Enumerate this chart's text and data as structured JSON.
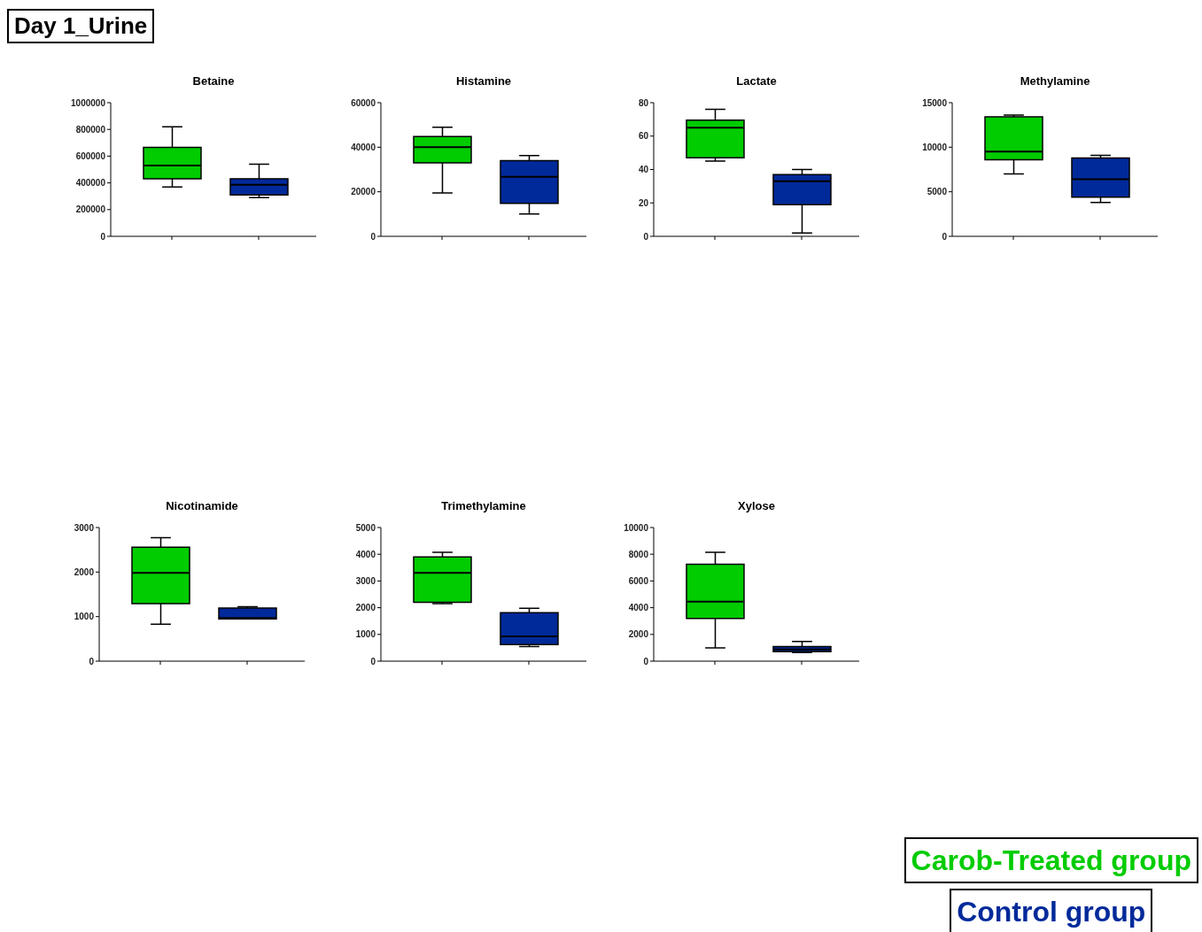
{
  "chart_data": [
    {
      "type": "other",
      "title": "Day 1_Urine"
    },
    {
      "type": "box",
      "title": "Betaine",
      "categories": [
        null,
        null
      ],
      "ylim": [
        0,
        1000000
      ],
      "yticks": [
        0,
        200000,
        400000,
        600000,
        800000,
        1000000
      ],
      "tick_labels": "y",
      "colors": [
        "#00cc00",
        "#002a9a"
      ],
      "boxes": [
        {
          "low": 370000,
          "q1": 430000,
          "median": 530000,
          "q3": 665000,
          "high": 820000
        },
        {
          "low": 290000,
          "q1": 310000,
          "median": 385000,
          "q3": 430000,
          "high": 540000
        }
      ]
    },
    {
      "type": "box",
      "title": "Histamine",
      "categories": [
        null,
        null
      ],
      "ylim": [
        0,
        60000
      ],
      "yticks": [
        0,
        20000,
        40000,
        60000
      ],
      "tick_labels": "y",
      "colors": [
        "#00cc00",
        "#002a9a"
      ],
      "boxes": [
        {
          "low": 19500,
          "q1": 33000,
          "median": 40000,
          "q3": 44800,
          "high": 49000
        },
        {
          "low": 10000,
          "q1": 14800,
          "median": 26700,
          "q3": 34000,
          "high": 36300
        }
      ]
    },
    {
      "type": "box",
      "title": "Lactate",
      "categories": [
        null,
        null
      ],
      "ylim": [
        0,
        80
      ],
      "yticks": [
        0,
        20,
        40,
        60,
        80
      ],
      "tick_labels": "y",
      "colors": [
        "#00cc00",
        "#002a9a"
      ],
      "boxes": [
        {
          "low": 45,
          "q1": 47,
          "median": 65,
          "q3": 69.5,
          "high": 76
        },
        {
          "low": 2,
          "q1": 19,
          "median": 33,
          "q3": 37,
          "high": 40
        }
      ]
    },
    {
      "type": "box",
      "title": "Methylamine",
      "categories": [
        null,
        null
      ],
      "ylim": [
        0,
        15000
      ],
      "yticks": [
        0,
        5000,
        10000,
        15000
      ],
      "tick_labels": "y",
      "colors": [
        "#00cc00",
        "#002a9a"
      ],
      "boxes": [
        {
          "low": 7000,
          "q1": 8600,
          "median": 9500,
          "q3": 13400,
          "high": 13600
        },
        {
          "low": 3800,
          "q1": 4400,
          "median": 6400,
          "q3": 8800,
          "high": 9100
        }
      ]
    },
    {
      "type": "box",
      "title": "Nicotinamide",
      "categories": [
        null,
        null
      ],
      "ylim": [
        0,
        3000
      ],
      "yticks": [
        0,
        1000,
        2000,
        3000
      ],
      "tick_labels": "y",
      "colors": [
        "#00cc00",
        "#002a9a"
      ],
      "boxes": [
        {
          "low": 830,
          "q1": 1290,
          "median": 1980,
          "q3": 2560,
          "high": 2770
        },
        {
          "low": 950,
          "q1": 950,
          "median": 970,
          "q3": 1190,
          "high": 1220
        }
      ]
    },
    {
      "type": "box",
      "title": "Trimethylamine",
      "categories": [
        null,
        null
      ],
      "ylim": [
        0,
        5000
      ],
      "yticks": [
        0,
        1000,
        2000,
        3000,
        4000,
        5000
      ],
      "tick_labels": "y",
      "colors": [
        "#00cc00",
        "#002a9a"
      ],
      "boxes": [
        {
          "low": 2150,
          "q1": 2200,
          "median": 3300,
          "q3": 3900,
          "high": 4070
        },
        {
          "low": 550,
          "q1": 620,
          "median": 930,
          "q3": 1810,
          "high": 1980
        }
      ]
    },
    {
      "type": "box",
      "title": "Xylose",
      "categories": [
        null,
        null
      ],
      "ylim": [
        0,
        10000
      ],
      "yticks": [
        0,
        2000,
        4000,
        6000,
        8000,
        10000
      ],
      "tick_labels": "y",
      "colors": [
        "#00cc00",
        "#002a9a"
      ],
      "boxes": [
        {
          "low": 1000,
          "q1": 3200,
          "median": 4450,
          "q3": 7250,
          "high": 8150
        },
        {
          "low": 650,
          "q1": 720,
          "median": 880,
          "q3": 1100,
          "high": 1480
        }
      ]
    },
    {
      "type": "other",
      "annotations": [
        "Carob-Treated group",
        "Control group"
      ],
      "colors": [
        "#00cc00",
        "#002a9a"
      ]
    }
  ]
}
